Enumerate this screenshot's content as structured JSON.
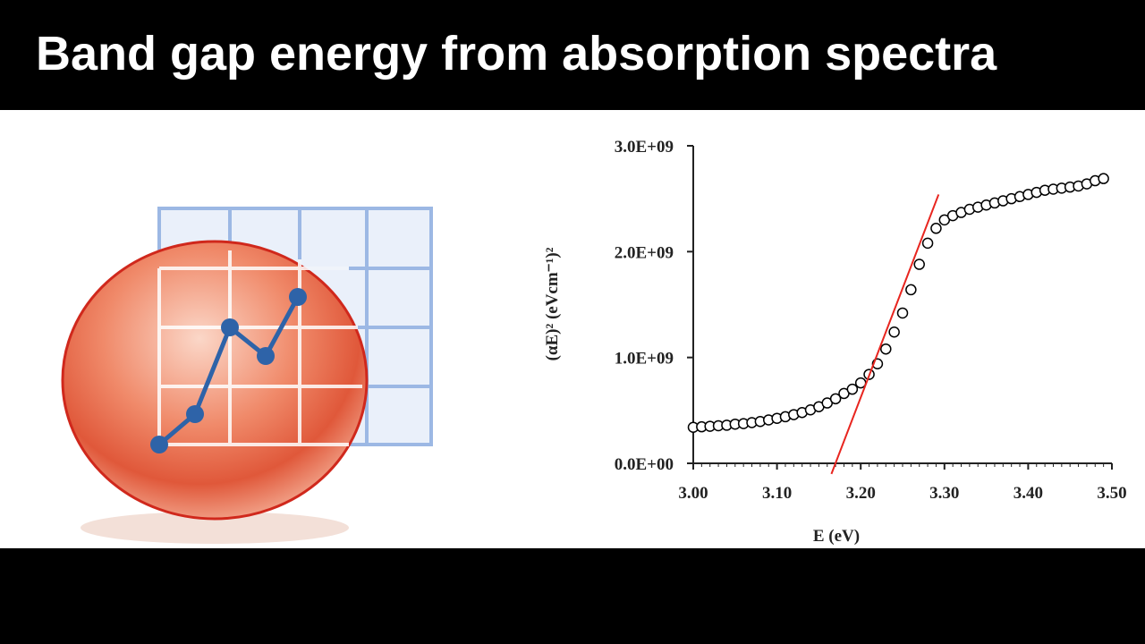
{
  "title": "Band gap energy from absorption spectra",
  "chart_data": {
    "type": "scatter",
    "xlabel": "E (eV)",
    "ylabel": "(αE)² (eVcm⁻¹)²",
    "x": [
      3.0,
      3.01,
      3.02,
      3.03,
      3.04,
      3.05,
      3.06,
      3.07,
      3.08,
      3.09,
      3.1,
      3.11,
      3.12,
      3.13,
      3.14,
      3.15,
      3.16,
      3.17,
      3.18,
      3.19,
      3.2,
      3.21,
      3.22,
      3.23,
      3.24,
      3.25,
      3.26,
      3.27,
      3.28,
      3.29,
      3.3,
      3.31,
      3.32,
      3.33,
      3.34,
      3.35,
      3.36,
      3.37,
      3.38,
      3.39,
      3.4,
      3.41,
      3.42,
      3.43,
      3.44,
      3.45,
      3.46,
      3.47,
      3.48,
      3.49
    ],
    "series": [
      {
        "color": "#000000",
        "values": [
          340000000,
          345000000,
          350000000,
          355000000,
          360000000,
          370000000,
          375000000,
          385000000,
          395000000,
          410000000,
          425000000,
          440000000,
          460000000,
          480000000,
          505000000,
          535000000,
          570000000,
          610000000,
          660000000,
          700000000,
          760000000,
          840000000,
          940000000,
          1080000000,
          1240000000,
          1420000000,
          1640000000,
          1880000000,
          2080000000,
          2220000000,
          2300000000,
          2340000000,
          2370000000,
          2400000000,
          2420000000,
          2440000000,
          2460000000,
          2480000000,
          2500000000,
          2520000000,
          2540000000,
          2560000000,
          2580000000,
          2590000000,
          2600000000,
          2610000000,
          2620000000,
          2640000000,
          2670000000,
          2690000000
        ]
      }
    ],
    "fit_line": {
      "x": [
        3.165,
        3.293
      ],
      "y": [
        -100000000,
        2540000000
      ],
      "color": "#e8251f"
    },
    "xlim": [
      3.0,
      3.5
    ],
    "xticks": [
      {
        "value": 3.0,
        "label": "3.00"
      },
      {
        "value": 3.1,
        "label": "3.10"
      },
      {
        "value": 3.2,
        "label": "3.20"
      },
      {
        "value": 3.3,
        "label": "3.30"
      },
      {
        "value": 3.4,
        "label": "3.40"
      },
      {
        "value": 3.5,
        "label": "3.50"
      }
    ],
    "ylim": [
      0,
      3000000000
    ],
    "yticks": [
      {
        "value": 0,
        "label": "0.0E+00"
      },
      {
        "value": 1000000000,
        "label": "1.0E+09"
      },
      {
        "value": 2000000000,
        "label": "2.0E+09"
      },
      {
        "value": 3000000000,
        "label": "3.0E+09"
      }
    ]
  }
}
